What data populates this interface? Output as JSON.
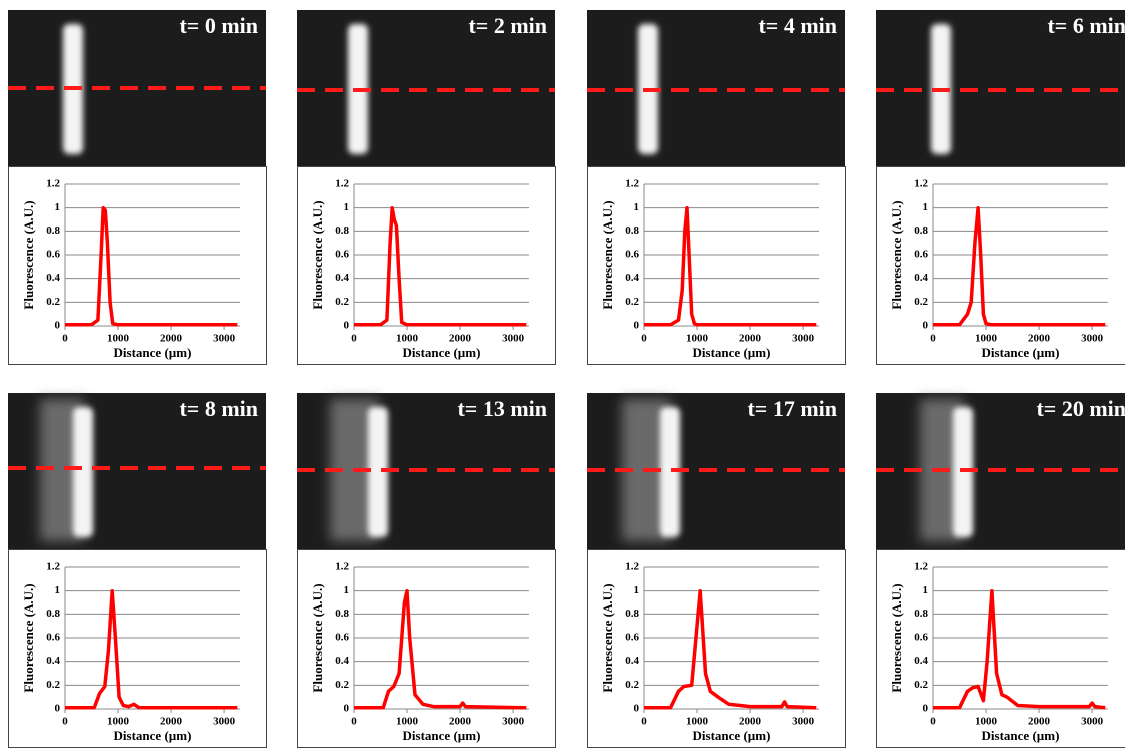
{
  "chart_data": [
    {
      "type": "line",
      "title": "t= 0 min",
      "xlabel": "Distance (µm)",
      "ylabel": "Fluorescence (A.U.)",
      "color": "#ff0000",
      "grid": true,
      "xlim": [
        0,
        3300
      ],
      "xticks": [
        0,
        1000,
        2000,
        3000
      ],
      "ylim": [
        0,
        1.2
      ],
      "yticks": [
        0,
        0.2,
        0.4,
        0.6,
        0.8,
        1,
        1.2
      ],
      "x": [
        0,
        500,
        620,
        680,
        720,
        760,
        800,
        850,
        900,
        1000,
        2000,
        3250
      ],
      "values": [
        0.01,
        0.01,
        0.05,
        0.6,
        1,
        0.98,
        0.7,
        0.2,
        0.02,
        0.01,
        0.01,
        0.01
      ]
    },
    {
      "type": "line",
      "title": "t= 2 min",
      "xlabel": "Distance (µm)",
      "ylabel": "Fluorescence (A.U.)",
      "color": "#ff0000",
      "grid": true,
      "xlim": [
        0,
        3300
      ],
      "xticks": [
        0,
        1000,
        2000,
        3000
      ],
      "ylim": [
        0,
        1.2
      ],
      "yticks": [
        0,
        0.2,
        0.4,
        0.6,
        0.8,
        1,
        1.2
      ],
      "x": [
        0,
        500,
        620,
        680,
        720,
        760,
        800,
        850,
        900,
        1000,
        2000,
        3250
      ],
      "values": [
        0.01,
        0.01,
        0.05,
        0.7,
        1,
        0.9,
        0.85,
        0.4,
        0.03,
        0.01,
        0.01,
        0.01
      ]
    },
    {
      "type": "line",
      "title": "t= 4 min",
      "xlabel": "Distance (µm)",
      "ylabel": "Fluorescence (A.U.)",
      "color": "#ff0000",
      "grid": true,
      "xlim": [
        0,
        3300
      ],
      "xticks": [
        0,
        1000,
        2000,
        3000
      ],
      "ylim": [
        0,
        1.2
      ],
      "yticks": [
        0,
        0.2,
        0.4,
        0.6,
        0.8,
        1,
        1.2
      ],
      "x": [
        0,
        500,
        650,
        720,
        770,
        810,
        850,
        900,
        950,
        1000,
        2000,
        3250
      ],
      "values": [
        0.01,
        0.01,
        0.05,
        0.3,
        0.8,
        1,
        0.6,
        0.1,
        0.02,
        0.01,
        0.01,
        0.01
      ]
    },
    {
      "type": "line",
      "title": "t= 6 min",
      "xlabel": "Distance (µm)",
      "ylabel": "Fluorescence (A.U.)",
      "color": "#ff0000",
      "grid": true,
      "xlim": [
        0,
        3300
      ],
      "xticks": [
        0,
        1000,
        2000,
        3000
      ],
      "ylim": [
        0,
        1.2
      ],
      "yticks": [
        0,
        0.2,
        0.4,
        0.6,
        0.8,
        1,
        1.2
      ],
      "x": [
        0,
        500,
        650,
        720,
        790,
        850,
        900,
        950,
        1000,
        1100,
        2000,
        3250
      ],
      "values": [
        0.01,
        0.01,
        0.1,
        0.2,
        0.7,
        1,
        0.6,
        0.1,
        0.02,
        0.01,
        0.01,
        0.01
      ]
    },
    {
      "type": "line",
      "title": "t= 8 min",
      "xlabel": "Distance (µm)",
      "ylabel": "Fluorescence (A.U.)",
      "color": "#ff0000",
      "grid": true,
      "xlim": [
        0,
        3300
      ],
      "xticks": [
        0,
        1000,
        2000,
        3000
      ],
      "ylim": [
        0,
        1.2
      ],
      "yticks": [
        0,
        0.2,
        0.4,
        0.6,
        0.8,
        1,
        1.2
      ],
      "x": [
        0,
        550,
        650,
        750,
        820,
        890,
        950,
        1020,
        1100,
        1200,
        1300,
        1400,
        2000,
        3250
      ],
      "values": [
        0.01,
        0.01,
        0.13,
        0.19,
        0.5,
        1,
        0.6,
        0.1,
        0.03,
        0.02,
        0.04,
        0.01,
        0.01,
        0.01
      ]
    },
    {
      "type": "line",
      "title": "t= 13 min",
      "xlabel": "Distance (µm)",
      "ylabel": "Fluorescence (A.U.)",
      "color": "#ff0000",
      "grid": true,
      "xlim": [
        0,
        3300
      ],
      "xticks": [
        0,
        1000,
        2000,
        3000
      ],
      "ylim": [
        0,
        1.2
      ],
      "yticks": [
        0,
        0.2,
        0.4,
        0.6,
        0.8,
        1,
        1.2
      ],
      "x": [
        0,
        550,
        650,
        750,
        850,
        950,
        1000,
        1050,
        1150,
        1300,
        1500,
        2000,
        2050,
        2100,
        3250
      ],
      "values": [
        0.01,
        0.01,
        0.15,
        0.19,
        0.3,
        0.9,
        1,
        0.6,
        0.12,
        0.04,
        0.02,
        0.02,
        0.05,
        0.02,
        0.01
      ]
    },
    {
      "type": "line",
      "title": "t= 17 min",
      "xlabel": "Distance (µm)",
      "ylabel": "Fluorescence (A.U.)",
      "color": "#ff0000",
      "grid": true,
      "xlim": [
        0,
        3300
      ],
      "xticks": [
        0,
        1000,
        2000,
        3000
      ],
      "ylim": [
        0,
        1.2
      ],
      "yticks": [
        0,
        0.2,
        0.4,
        0.6,
        0.8,
        1,
        1.2
      ],
      "x": [
        0,
        500,
        650,
        750,
        900,
        960,
        1060,
        1160,
        1250,
        1400,
        1600,
        2000,
        2600,
        2650,
        2700,
        3250
      ],
      "values": [
        0.01,
        0.01,
        0.15,
        0.19,
        0.2,
        0.5,
        1,
        0.3,
        0.15,
        0.1,
        0.04,
        0.02,
        0.02,
        0.06,
        0.02,
        0.01
      ]
    },
    {
      "type": "line",
      "title": "t= 20 min",
      "xlabel": "Distance (µm)",
      "ylabel": "Fluorescence (A.U.)",
      "color": "#ff0000",
      "grid": true,
      "xlim": [
        0,
        3300
      ],
      "xticks": [
        0,
        1000,
        2000,
        3000
      ],
      "ylim": [
        0,
        1.2
      ],
      "yticks": [
        0,
        0.2,
        0.4,
        0.6,
        0.8,
        1,
        1.2
      ],
      "x": [
        0,
        500,
        650,
        750,
        850,
        950,
        1020,
        1110,
        1200,
        1300,
        1400,
        1600,
        2000,
        2950,
        3000,
        3050,
        3250
      ],
      "values": [
        0.01,
        0.01,
        0.15,
        0.18,
        0.19,
        0.07,
        0.4,
        1,
        0.3,
        0.12,
        0.1,
        0.03,
        0.02,
        0.02,
        0.05,
        0.02,
        0.01
      ]
    }
  ]
}
